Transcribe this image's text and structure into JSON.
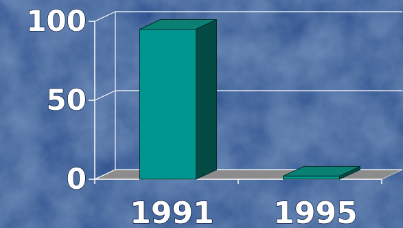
{
  "colors": {
    "background": "#1f4f95",
    "grid": "#ffffff",
    "floor": "#8c8c8c",
    "bar_front": "#00968f",
    "bar_top": "#0a7f74",
    "bar_side": "#034a44",
    "text": "#ffffff"
  },
  "chart_data": {
    "type": "bar",
    "style": "3d-column",
    "categories": [
      "1991",
      "1995"
    ],
    "values": [
      95,
      2
    ],
    "title": "",
    "xlabel": "",
    "ylabel": "",
    "ylim": [
      0,
      100
    ],
    "yticks": [
      0,
      50,
      100
    ],
    "grid": true,
    "legend": "none"
  }
}
